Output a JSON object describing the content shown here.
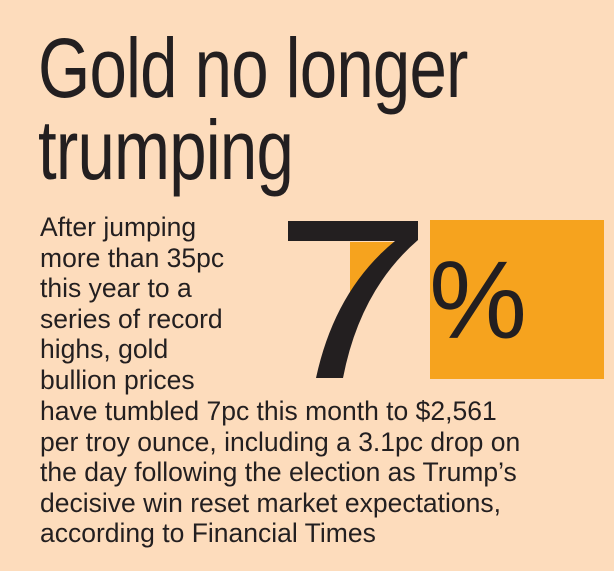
{
  "headline": {
    "line1": "Gold no longer",
    "line2": "trumping"
  },
  "stat": {
    "value": "7",
    "unit": "%"
  },
  "body": {
    "lines_left": [
      "After jumping",
      "more than 35pc",
      "this year to a",
      "series of record",
      "highs, gold",
      "bullion prices"
    ],
    "lines_full": [
      "have tumbled 7pc this month to $2,561",
      "per troy ounce, including a 3.1pc drop on",
      "the day following the election as Trump’s",
      "decisive win reset market expectations,",
      "according to Financial Times"
    ]
  },
  "colors": {
    "background": "#fddcbc",
    "accent": "#f6a31e",
    "text": "#231f20"
  }
}
